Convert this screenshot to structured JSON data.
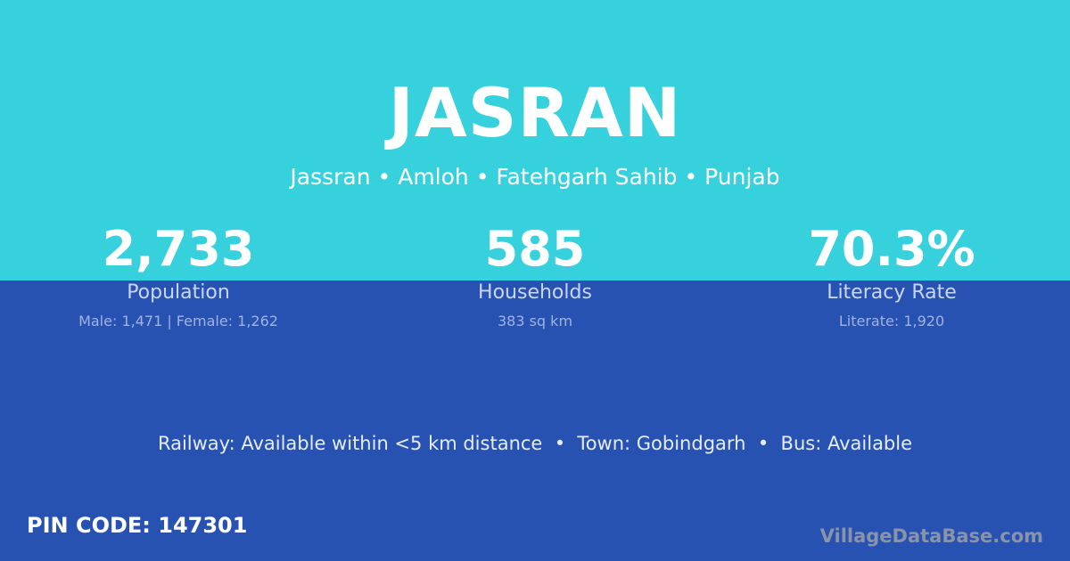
{
  "title": "JASRAN",
  "subtitle": "Jassran • Amloh • Fatehgarh Sahib • Punjab",
  "stats": [
    {
      "value": "2,733",
      "label": "Population",
      "detail": "Male: 1,471 | Female: 1,262"
    },
    {
      "value": "585",
      "label": "Households",
      "detail": "383 sq km"
    },
    {
      "value": "70.3%",
      "label": "Literacy Rate",
      "detail": "Literate: 1,920"
    }
  ],
  "facts": "Railway: Available within <5 km distance  •  Town: Gobindgarh  •  Bus: Available",
  "pin": "PIN CODE: 147301",
  "watermark": "VillageDataBase.com",
  "colors": {
    "top": "#37d0dd",
    "bottom": "#2752b2"
  }
}
